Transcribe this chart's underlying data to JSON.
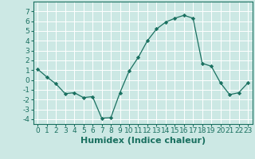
{
  "x": [
    0,
    1,
    2,
    3,
    4,
    5,
    6,
    7,
    8,
    9,
    10,
    11,
    12,
    13,
    14,
    15,
    16,
    17,
    18,
    19,
    20,
    21,
    22,
    23
  ],
  "y": [
    1.1,
    0.3,
    -0.4,
    -1.4,
    -1.3,
    -1.8,
    -1.7,
    -3.9,
    -3.85,
    -1.3,
    0.9,
    2.3,
    4.0,
    5.2,
    5.9,
    6.3,
    6.6,
    6.3,
    1.7,
    1.4,
    -0.3,
    -1.5,
    -1.3,
    -0.3
  ],
  "line_color": "#1a7060",
  "marker": "D",
  "marker_size": 2.2,
  "bg_color": "#cce8e4",
  "grid_color": "#ffffff",
  "xlabel": "Humidex (Indice chaleur)",
  "ylim": [
    -4.5,
    8.0
  ],
  "xlim": [
    -0.5,
    23.5
  ],
  "yticks": [
    -4,
    -3,
    -2,
    -1,
    0,
    1,
    2,
    3,
    4,
    5,
    6,
    7
  ],
  "xticks": [
    0,
    1,
    2,
    3,
    4,
    5,
    6,
    7,
    8,
    9,
    10,
    11,
    12,
    13,
    14,
    15,
    16,
    17,
    18,
    19,
    20,
    21,
    22,
    23
  ],
  "tick_label_fontsize": 6.5,
  "xlabel_fontsize": 8.0,
  "tick_color": "#1a7060",
  "axis_color": "#1a7060"
}
